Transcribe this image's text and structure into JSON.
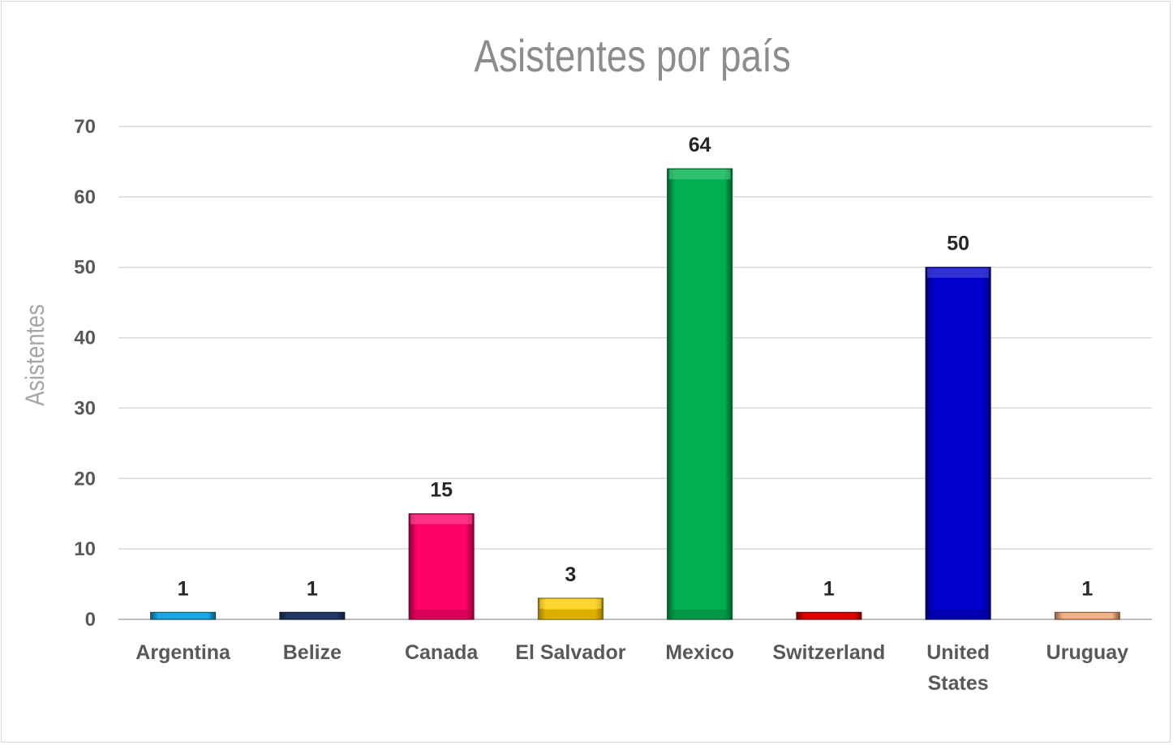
{
  "chart_data": {
    "type": "bar",
    "title": "Asistentes por país",
    "xlabel": "",
    "ylabel": "Asistentes",
    "ylim": [
      0,
      70
    ],
    "yticks": [
      0,
      10,
      20,
      30,
      40,
      50,
      60,
      70
    ],
    "grid": true,
    "legend": "none",
    "categories": [
      [
        "Argentina"
      ],
      [
        "Belize"
      ],
      [
        "Canada"
      ],
      [
        "El Salvador"
      ],
      [
        "Mexico"
      ],
      [
        "Switzerland"
      ],
      [
        "United",
        "States"
      ],
      [
        "Uruguay"
      ]
    ],
    "values": [
      1,
      1,
      15,
      3,
      64,
      1,
      50,
      1
    ],
    "colors": [
      "#1aa7e8",
      "#1f3864",
      "#ff0066",
      "#ffcc00",
      "#00b050",
      "#e00000",
      "#0000cc",
      "#f4b183"
    ]
  }
}
